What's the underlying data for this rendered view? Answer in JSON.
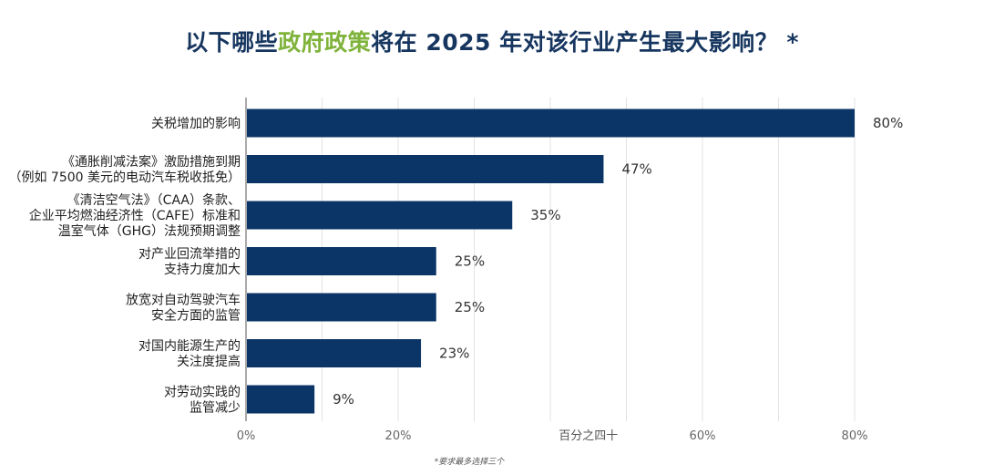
{
  "title": {
    "before": "以下哪些",
    "highlight": "政府政策",
    "after": "将在 2025 年对该行业产生最大影响？ *"
  },
  "footnote": "*要求最多选择三个",
  "colors": {
    "bar": "#0b3566",
    "title": "#17365f",
    "title_highlight": "#7fb33b"
  },
  "chart_data": {
    "type": "bar",
    "orientation": "horizontal",
    "categories": [
      [
        "关税增加的影响"
      ],
      [
        "《通胀削减法案》激励措施到期",
        "（例如 7500 美元的电动汽车税收抵免）"
      ],
      [
        "《清洁空气法》（CAA）条款、",
        "企业平均燃油经济性（CAFE）标准和",
        "温室气体（GHG）法规预期调整"
      ],
      [
        "对产业回流举措的",
        "支持力度加大"
      ],
      [
        "放宽对自动驾驶汽车",
        "安全方面的监管"
      ],
      [
        "对国内能源生产的",
        "关注度提高"
      ],
      [
        "对劳动实践的",
        "监管减少"
      ]
    ],
    "values": [
      80,
      47,
      35,
      25,
      25,
      23,
      9
    ],
    "value_labels": [
      "80%",
      "47%",
      "35%",
      "25%",
      "25%",
      "23%",
      "9%"
    ],
    "xlabel": "百分之四十",
    "xlim": [
      0,
      80
    ],
    "xticks": [
      0,
      20,
      40,
      60,
      80
    ],
    "xtick_labels": [
      "0%",
      "20%",
      "",
      "60%",
      "80%"
    ],
    "grid": true
  }
}
